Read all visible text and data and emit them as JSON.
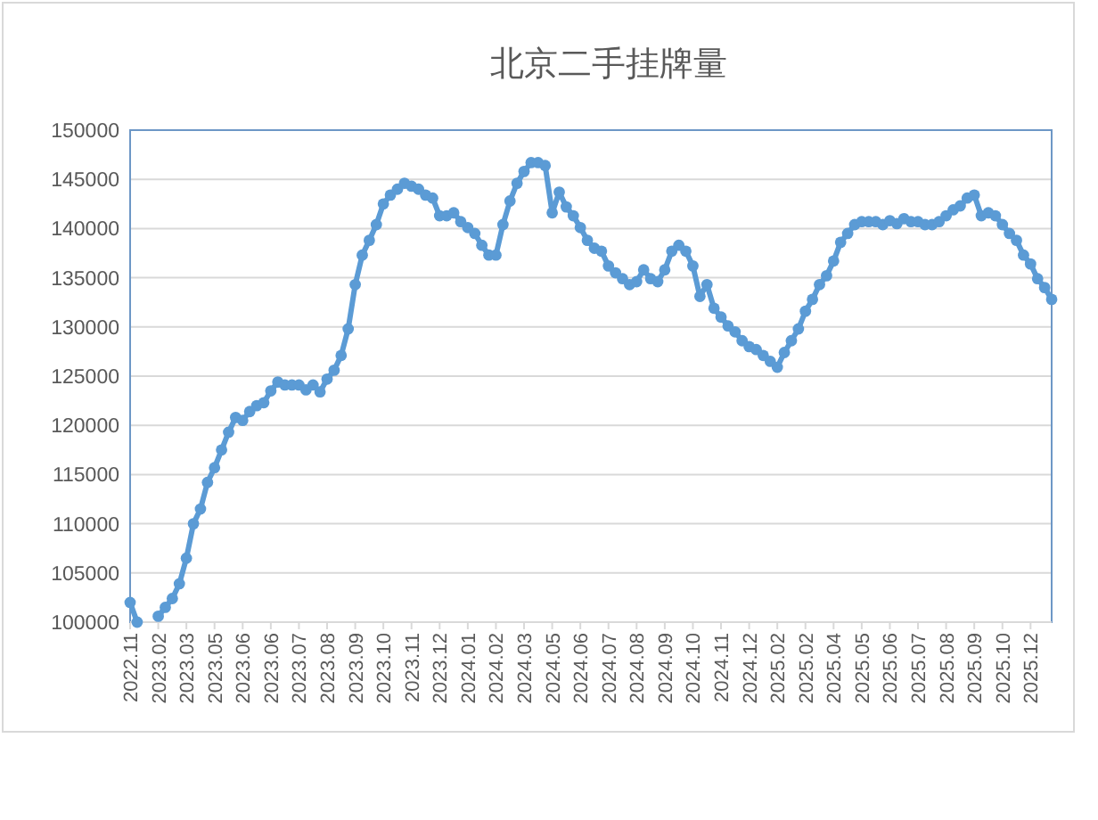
{
  "chart_data": {
    "type": "line",
    "title": "北京二手挂牌量",
    "categories": [
      "2022.11",
      null,
      null,
      null,
      "2023.02",
      null,
      null,
      null,
      "2023.03",
      null,
      null,
      null,
      "2023.05",
      null,
      null,
      null,
      "2023.06",
      null,
      null,
      null,
      "2023.06",
      null,
      null,
      null,
      "2023.07",
      null,
      null,
      null,
      "2023.08",
      null,
      null,
      null,
      "2023.09",
      null,
      null,
      null,
      "2023.10",
      null,
      null,
      null,
      "2023.11",
      null,
      null,
      null,
      "2023.12",
      null,
      null,
      null,
      "2024.01",
      null,
      null,
      null,
      "2024.02",
      null,
      null,
      null,
      "2024.03",
      null,
      null,
      null,
      "2024.05",
      null,
      null,
      null,
      "2024.06",
      null,
      null,
      null,
      "2024.07",
      null,
      null,
      null,
      "2024.08",
      null,
      null,
      null,
      "2024.09",
      null,
      null,
      null,
      "2024.10",
      null,
      null,
      null,
      "2024.11",
      null,
      null,
      null,
      "2024.12",
      null,
      null,
      null,
      "2025.02",
      null,
      null,
      null,
      "2025.02",
      null,
      null,
      null,
      "2025.04",
      null,
      null,
      null,
      "2025.05",
      null,
      null,
      null,
      "2025.06",
      null,
      null,
      null,
      "2025.07",
      null,
      null,
      null,
      "2025.08",
      null,
      null,
      null,
      "2025.09",
      null,
      null,
      null,
      "2025.10",
      null,
      null,
      null,
      "2025.12",
      null,
      null,
      null
    ],
    "series": [
      {
        "color": "#5b9bd5",
        "values": [
          102000,
          100000,
          null,
          null,
          100600,
          101500,
          102400,
          103900,
          106500,
          110000,
          111500,
          114200,
          115700,
          117500,
          119300,
          120800,
          120500,
          121400,
          122000,
          122300,
          123500,
          124400,
          124100,
          124100,
          124100,
          123600,
          124100,
          123400,
          124700,
          125600,
          127100,
          129800,
          134300,
          137300,
          138800,
          140400,
          142500,
          143400,
          144000,
          144600,
          144300,
          144000,
          143400,
          143100,
          141300,
          141300,
          141600,
          140700,
          140100,
          139500,
          138300,
          137300,
          137300,
          140400,
          142800,
          144600,
          145800,
          146700,
          146700,
          146400,
          141600,
          143700,
          142200,
          141300,
          140100,
          138800,
          138000,
          137700,
          136200,
          135500,
          134900,
          134300,
          134600,
          135800,
          134900,
          134600,
          135800,
          137700,
          138300,
          137700,
          136200,
          133100,
          134300,
          131900,
          131000,
          130100,
          129500,
          128600,
          128000,
          127700,
          127100,
          126500,
          125900,
          127400,
          128600,
          129800,
          131600,
          132800,
          134300,
          135200,
          136700,
          138600,
          139500,
          140400,
          140700,
          140700,
          140700,
          140400,
          140800,
          140500,
          141000,
          140700,
          140700,
          140400,
          140400,
          140700,
          141300,
          141900,
          142300,
          143100,
          143400,
          141300,
          141600,
          141300,
          140400,
          139500,
          138800,
          137300,
          136400,
          134900,
          134000,
          132800
        ]
      }
    ],
    "ylim": [
      100000,
      150000
    ],
    "yticks": [
      100000,
      105000,
      110000,
      115000,
      120000,
      125000,
      130000,
      135000,
      140000,
      145000,
      150000
    ],
    "grid": "y",
    "marker": "circle",
    "line_style": "solid"
  }
}
